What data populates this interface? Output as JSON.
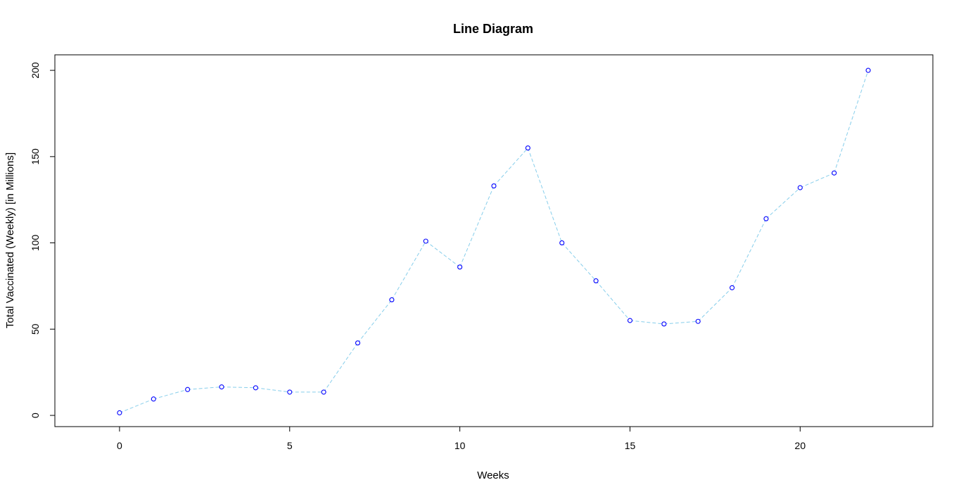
{
  "chart_data": {
    "type": "line",
    "title": "Line Diagram",
    "xlabel": "Weeks",
    "ylabel": "Total Vaccinated (Weekly) [in Millions]",
    "xlim": [
      -1.9,
      23.9
    ],
    "ylim": [
      -6.5,
      209
    ],
    "x_ticks": [
      0,
      5,
      10,
      15,
      20
    ],
    "y_ticks": [
      0,
      50,
      100,
      150,
      200
    ],
    "grid": false,
    "legend": "none",
    "line_style": "dashed",
    "point_style": "open-circle",
    "line_color": "#87ceeb",
    "point_color": "#0000ff",
    "x": [
      0,
      1,
      2,
      3,
      4,
      5,
      6,
      7,
      8,
      9,
      10,
      11,
      12,
      13,
      14,
      15,
      16,
      17,
      18,
      19,
      20,
      21,
      22
    ],
    "values": [
      1.5,
      9.5,
      15,
      16.5,
      16,
      13.5,
      13.5,
      42,
      67,
      101,
      86,
      133,
      155,
      100,
      78,
      55,
      53,
      54.5,
      74,
      114,
      132,
      140.5,
      200
    ]
  }
}
